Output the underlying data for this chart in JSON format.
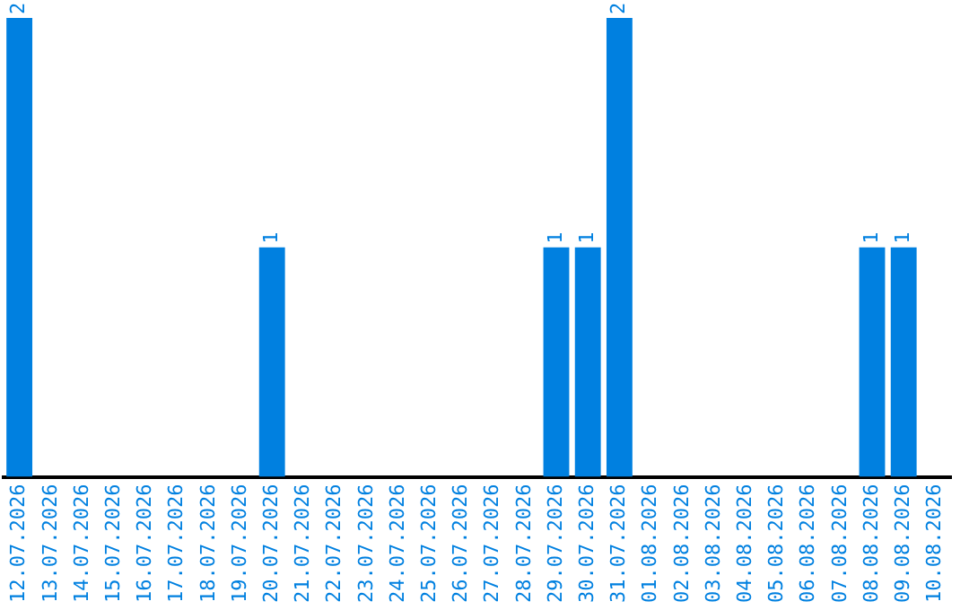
{
  "chart_data": {
    "type": "bar",
    "categories": [
      "12.07.2026",
      "13.07.2026",
      "14.07.2026",
      "15.07.2026",
      "16.07.2026",
      "17.07.2026",
      "18.07.2026",
      "19.07.2026",
      "20.07.2026",
      "21.07.2026",
      "22.07.2026",
      "23.07.2026",
      "24.07.2026",
      "25.07.2026",
      "26.07.2026",
      "27.07.2026",
      "28.07.2026",
      "29.07.2026",
      "30.07.2026",
      "31.07.2026",
      "01.08.2026",
      "02.08.2026",
      "03.08.2026",
      "04.08.2026",
      "05.08.2026",
      "06.08.2026",
      "07.08.2026",
      "08.08.2026",
      "09.08.2026",
      "10.08.2026"
    ],
    "values": [
      2,
      0,
      0,
      0,
      0,
      0,
      0,
      0,
      1,
      0,
      0,
      0,
      0,
      0,
      0,
      0,
      0,
      1,
      1,
      2,
      0,
      0,
      0,
      0,
      0,
      0,
      0,
      1,
      1,
      0
    ],
    "value_labels": [
      "2",
      null,
      null,
      null,
      null,
      null,
      null,
      null,
      "1",
      null,
      null,
      null,
      null,
      null,
      null,
      null,
      null,
      "1",
      "1",
      "2",
      null,
      null,
      null,
      null,
      null,
      null,
      null,
      "1",
      "1",
      null
    ],
    "color": "#0080e0",
    "grid": false,
    "legend": false
  }
}
